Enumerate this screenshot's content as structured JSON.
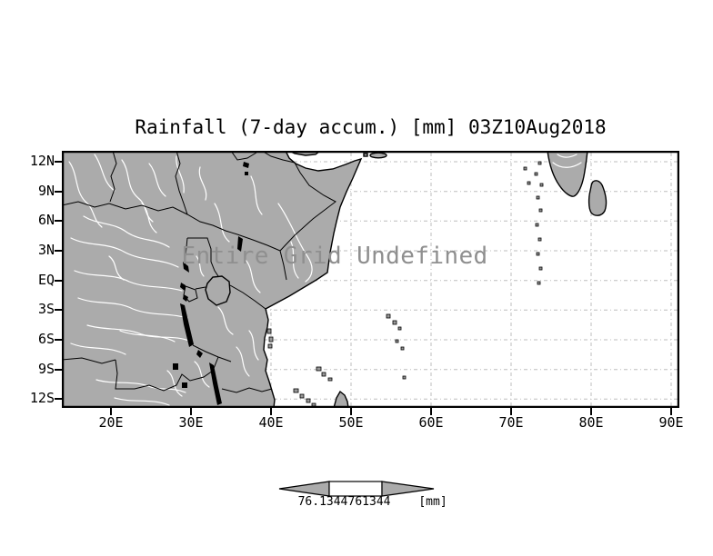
{
  "title": "Rainfall (7-day accum.) [mm] 03Z10Aug2018",
  "map": {
    "message": "Entire Grid Undefined",
    "lat_labels": [
      "12N",
      "9N",
      "6N",
      "3N",
      "EQ",
      "3S",
      "6S",
      "9S",
      "12S"
    ],
    "lon_labels": [
      "20E",
      "30E",
      "40E",
      "50E",
      "60E",
      "70E",
      "80E",
      "90E"
    ]
  },
  "legend": {
    "min_label": "76.1344",
    "max_label": "761344",
    "units_label": "[mm]"
  },
  "colors": {
    "land": "#ababab",
    "ocean": "#ffffff",
    "grid": "#bdbdbd",
    "frame": "#000000",
    "rivers": "#ffffff",
    "message_text": "#8f8f8f"
  }
}
